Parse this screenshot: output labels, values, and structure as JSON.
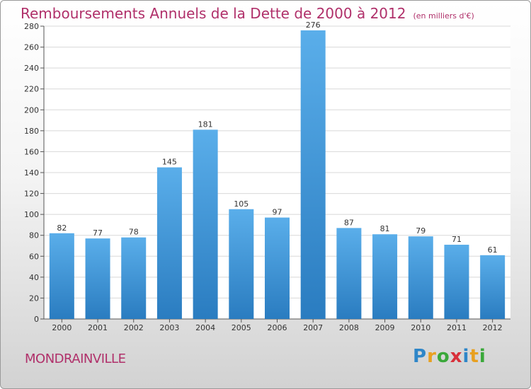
{
  "title": "Remboursements Annuels de la Dette de 2000 à 2012",
  "subtitle": "(en milliers d'€)",
  "commune": "MONDRAINVILLE",
  "logo": [
    "P",
    "r",
    "o",
    "x",
    "i",
    "t",
    "i"
  ],
  "colors": {
    "bar_top": "#5aaeea",
    "bar_bottom": "#2a7cc0",
    "title": "#b0306a"
  },
  "chart_data": {
    "type": "bar",
    "categories": [
      "2000",
      "2001",
      "2002",
      "2003",
      "2004",
      "2005",
      "2006",
      "2007",
      "2008",
      "2009",
      "2010",
      "2011",
      "2012"
    ],
    "values": [
      82,
      77,
      78,
      145,
      181,
      105,
      97,
      276,
      87,
      81,
      79,
      71,
      61
    ],
    "ylim": [
      0,
      280
    ],
    "yticks": [
      0,
      20,
      40,
      60,
      80,
      100,
      120,
      140,
      160,
      180,
      200,
      220,
      240,
      260,
      280
    ],
    "grid": true,
    "xlabel": "",
    "ylabel": ""
  }
}
